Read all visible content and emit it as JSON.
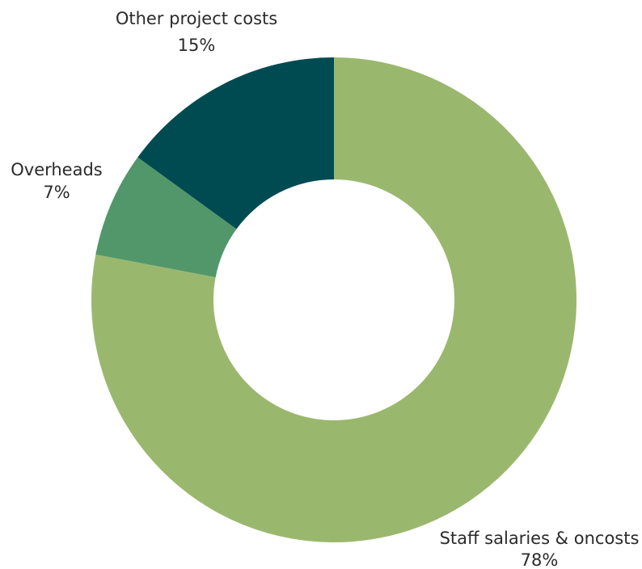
{
  "chart_data": {
    "type": "pie",
    "variant": "donut",
    "title": "",
    "start_angle_deg": 0,
    "direction": "clockwise",
    "slices": [
      {
        "label": "Staff salaries & oncosts",
        "value": 78,
        "value_label": "78%",
        "color": "#9ab86d"
      },
      {
        "label": "Overheads",
        "value": 7,
        "value_label": "7%",
        "color": "#51976a"
      },
      {
        "label": "Other project costs",
        "value": 15,
        "value_label": "15%",
        "color": "#004b52"
      }
    ]
  }
}
